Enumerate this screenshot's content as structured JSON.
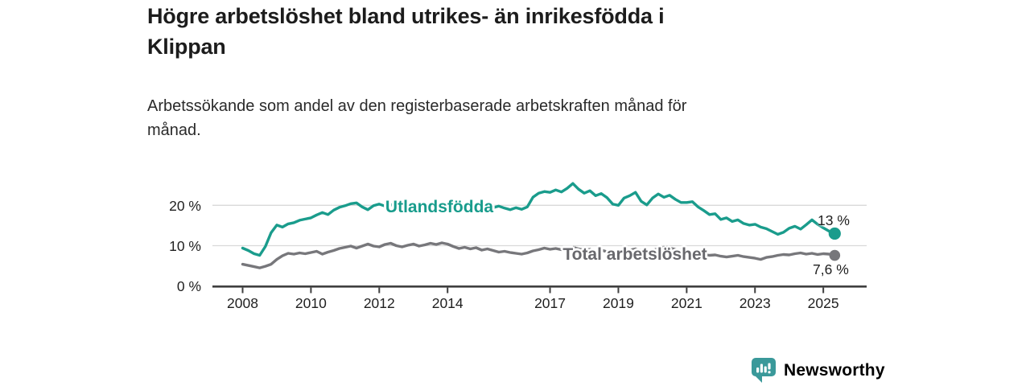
{
  "header": {
    "title": "Högre arbetslöshet bland utrikes- än inrikesfödda i\nKlippan",
    "subtitle": "Arbetssökande som andel av den registerbaserade arbetskraften månad för\nmånad."
  },
  "logo": {
    "text": "Newsworthy",
    "color": "#3a999a",
    "icon": "newsworthy-speech-bubble-bar-chart-icon"
  },
  "colors": {
    "series_foreign_born": "#1a9c8c",
    "series_total": "#77777b",
    "axis": "#3f3f3f",
    "gridline": "#d9d9d9",
    "tick_text": "#1f1f1f"
  },
  "chart_data": {
    "type": "line",
    "title": "Högre arbetslöshet bland utrikes- än inrikesfödda i Klippan",
    "subtitle": "Arbetssökande som andel av den registerbaserade arbetskraften månad för månad.",
    "xlabel": "",
    "ylabel": "",
    "x_unit": "year (monthly share of registered labour force, values every 2nd month)",
    "x_start": 2008.0,
    "x_step": 0.16667,
    "x_end": 2025.33,
    "ylim": [
      0,
      27
    ],
    "grid": "horizontal gridlines at 10 % and 20 %",
    "legend_position": "inline labels on lines, end values at right",
    "x_ticks": [
      {
        "value": 2008,
        "label": "2008"
      },
      {
        "value": 2010,
        "label": "2010"
      },
      {
        "value": 2012,
        "label": "2012"
      },
      {
        "value": 2014,
        "label": "2014"
      },
      {
        "value": 2017,
        "label": "2017"
      },
      {
        "value": 2019,
        "label": "2019"
      },
      {
        "value": 2021,
        "label": "2021"
      },
      {
        "value": 2023,
        "label": "2023"
      },
      {
        "value": 2025,
        "label": "2025"
      }
    ],
    "y_ticks": [
      {
        "value": 0,
        "label": "0 %"
      },
      {
        "value": 10,
        "label": "10 %"
      },
      {
        "value": 20,
        "label": "20 %"
      }
    ],
    "y_gridlines": [
      10,
      20
    ],
    "series": [
      {
        "name": "Utlandsfödda",
        "color": "#1a9c8c",
        "end_label": "13 %",
        "end_value": 13.0,
        "values": [
          9.4,
          8.8,
          8.0,
          7.6,
          9.8,
          13.2,
          15.1,
          14.6,
          15.4,
          15.7,
          16.3,
          16.6,
          16.9,
          17.6,
          18.2,
          17.7,
          18.8,
          19.5,
          19.9,
          20.4,
          20.6,
          19.6,
          18.9,
          19.9,
          20.3,
          19.8,
          20.2,
          19.6,
          19.0,
          19.5,
          19.8,
          19.3,
          18.9,
          19.4,
          19.9,
          19.6,
          19.9,
          20.2,
          19.6,
          19.2,
          19.6,
          20.0,
          19.5,
          19.1,
          19.4,
          19.8,
          19.3,
          18.9,
          19.4,
          19.0,
          19.6,
          22.0,
          23.0,
          23.4,
          23.2,
          23.8,
          23.3,
          24.2,
          25.4,
          24.0,
          23.0,
          23.6,
          22.4,
          22.9,
          21.9,
          20.3,
          20.0,
          21.8,
          22.4,
          23.2,
          21.0,
          20.1,
          21.8,
          22.8,
          22.0,
          22.5,
          21.5,
          20.7,
          20.7,
          20.9,
          19.6,
          18.7,
          17.7,
          17.9,
          16.5,
          16.9,
          16.0,
          16.4,
          15.5,
          15.1,
          15.3,
          14.6,
          14.2,
          13.5,
          12.8,
          13.3,
          14.3,
          14.8,
          14.1,
          15.2,
          16.4,
          15.3,
          14.4,
          13.6,
          13.0
        ]
      },
      {
        "name": "Total arbetslöshet",
        "color": "#77777b",
        "end_label": "7,6 %",
        "end_value": 7.6,
        "values": [
          5.4,
          5.1,
          4.8,
          4.5,
          4.9,
          5.4,
          6.6,
          7.5,
          8.1,
          7.9,
          8.2,
          8.0,
          8.3,
          8.6,
          7.9,
          8.4,
          8.8,
          9.3,
          9.6,
          9.9,
          9.4,
          9.9,
          10.4,
          9.9,
          9.7,
          10.3,
          10.6,
          10.0,
          9.7,
          10.1,
          10.4,
          9.9,
          10.2,
          10.6,
          10.3,
          10.7,
          10.4,
          9.8,
          9.3,
          9.6,
          9.2,
          9.5,
          8.9,
          9.2,
          8.8,
          8.4,
          8.6,
          8.3,
          8.1,
          7.9,
          8.2,
          8.7,
          9.0,
          9.4,
          9.1,
          9.3,
          9.0,
          9.4,
          9.6,
          9.2,
          8.9,
          9.1,
          8.7,
          8.9,
          8.5,
          8.2,
          8.4,
          8.7,
          8.9,
          9.2,
          8.8,
          8.5,
          8.8,
          9.3,
          9.6,
          9.4,
          9.1,
          8.8,
          8.6,
          8.4,
          8.1,
          7.8,
          7.6,
          7.7,
          7.4,
          7.2,
          7.4,
          7.6,
          7.3,
          7.1,
          6.9,
          6.6,
          7.1,
          7.3,
          7.6,
          7.8,
          7.7,
          8.0,
          8.2,
          7.9,
          8.1,
          7.8,
          8.0,
          7.9,
          7.6
        ]
      }
    ]
  }
}
